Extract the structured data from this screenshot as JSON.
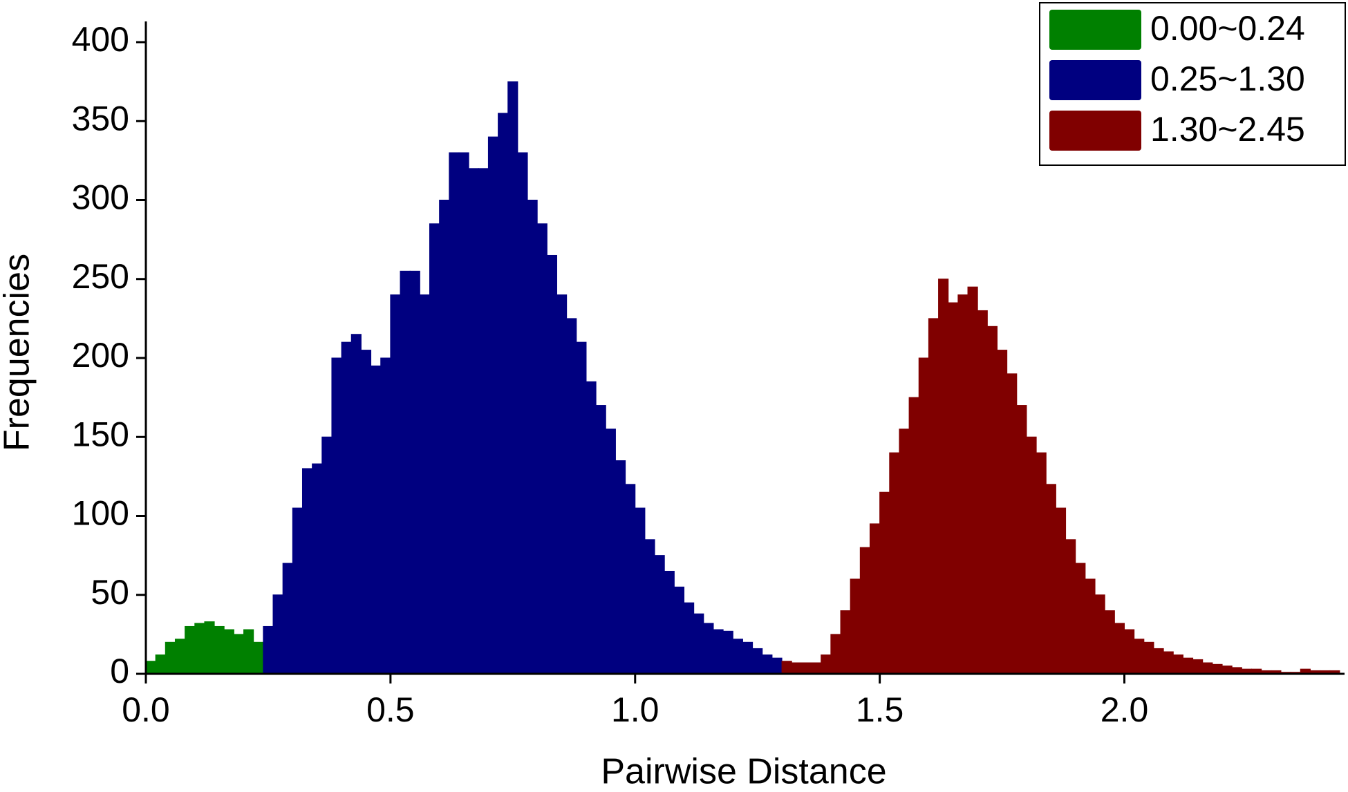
{
  "chart_data": {
    "type": "histogram",
    "x_label": "Pairwise Distance",
    "y_label": "Frequencies",
    "xlim": [
      0,
      2.45
    ],
    "ylim": [
      0,
      400
    ],
    "xticks": [
      {
        "value": 0,
        "label": "0.0"
      },
      {
        "value": 0.5,
        "label": "0.5"
      },
      {
        "value": 1,
        "label": "1.0"
      },
      {
        "value": 1.5,
        "label": "1.5"
      },
      {
        "value": 2,
        "label": "2.0"
      }
    ],
    "yticks": [
      0,
      50,
      100,
      150,
      200,
      250,
      300,
      350,
      400
    ],
    "legend": "upper right",
    "series": [
      {
        "name": "0.00~0.24",
        "color": "#008000",
        "bins": [
          0,
          0.02,
          0.04,
          0.06,
          0.08,
          0.1,
          0.12,
          0.14,
          0.16,
          0.18,
          0.2,
          0.22,
          0.24
        ],
        "values": [
          8,
          12,
          20,
          22,
          30,
          32,
          33,
          30,
          28,
          25,
          28,
          20
        ]
      },
      {
        "name": "0.25~1.30",
        "color": "#000080",
        "bins": [
          0.24,
          0.26,
          0.28,
          0.3,
          0.32,
          0.34,
          0.36,
          0.38,
          0.4,
          0.42,
          0.44,
          0.46,
          0.48,
          0.5,
          0.52,
          0.54,
          0.56,
          0.58,
          0.6,
          0.62,
          0.64,
          0.66,
          0.68,
          0.7,
          0.72,
          0.74,
          0.76,
          0.78,
          0.8,
          0.82,
          0.84,
          0.86,
          0.88,
          0.9,
          0.92,
          0.94,
          0.96,
          0.98,
          1,
          1.02,
          1.04,
          1.06,
          1.08,
          1.1,
          1.12,
          1.14,
          1.16,
          1.18,
          1.2,
          1.22,
          1.24,
          1.26,
          1.28,
          1.3
        ],
        "values": [
          30,
          50,
          70,
          105,
          130,
          133,
          150,
          200,
          210,
          215,
          205,
          195,
          200,
          240,
          255,
          255,
          240,
          285,
          300,
          330,
          330,
          320,
          320,
          340,
          355,
          375,
          330,
          300,
          285,
          265,
          240,
          225,
          210,
          185,
          170,
          155,
          135,
          120,
          105,
          85,
          75,
          65,
          55,
          45,
          38,
          32,
          28,
          27,
          22,
          20,
          16,
          12,
          10
        ]
      },
      {
        "name": "1.30~2.45",
        "color": "#800000",
        "bins": [
          1.3,
          1.32,
          1.34,
          1.36,
          1.38,
          1.4,
          1.42,
          1.44,
          1.46,
          1.48,
          1.5,
          1.52,
          1.54,
          1.56,
          1.58,
          1.6,
          1.62,
          1.64,
          1.66,
          1.68,
          1.7,
          1.72,
          1.74,
          1.76,
          1.78,
          1.8,
          1.82,
          1.84,
          1.86,
          1.88,
          1.9,
          1.92,
          1.94,
          1.96,
          1.98,
          2,
          2.02,
          2.04,
          2.06,
          2.08,
          2.1,
          2.12,
          2.14,
          2.16,
          2.18,
          2.2,
          2.22,
          2.24,
          2.26,
          2.28,
          2.3,
          2.32,
          2.34,
          2.36,
          2.38,
          2.4,
          2.42,
          2.44
        ],
        "values": [
          8,
          7,
          7,
          7,
          12,
          25,
          40,
          60,
          80,
          95,
          115,
          140,
          155,
          175,
          200,
          225,
          250,
          235,
          240,
          245,
          230,
          220,
          205,
          190,
          170,
          150,
          140,
          120,
          105,
          85,
          70,
          60,
          50,
          40,
          32,
          28,
          22,
          20,
          16,
          14,
          12,
          10,
          9,
          7,
          6,
          5,
          4,
          3,
          3,
          2,
          2,
          1,
          1,
          3,
          2,
          2,
          2
        ]
      }
    ]
  }
}
